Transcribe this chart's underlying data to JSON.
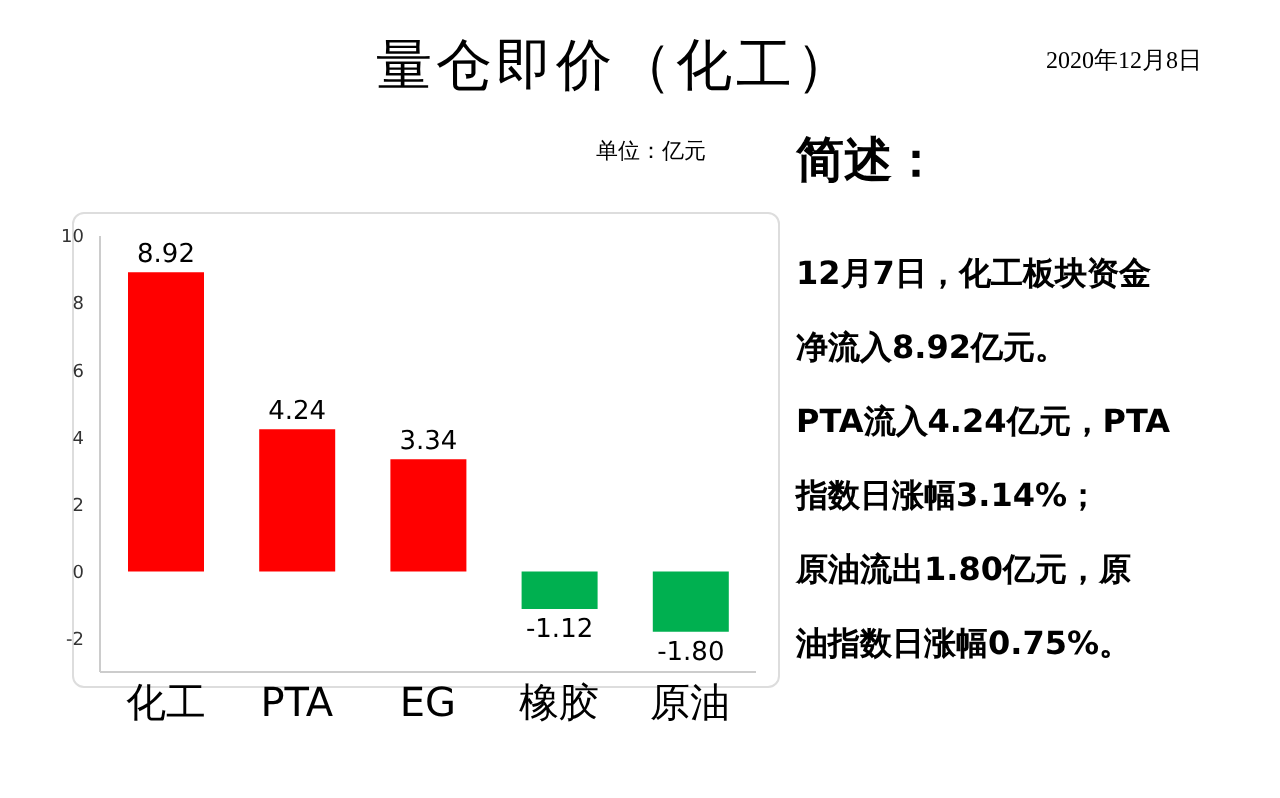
{
  "chart_data": {
    "type": "bar",
    "title": "量仓即价（化工）",
    "subtitle": "单位：亿元",
    "categories": [
      "化工",
      "PTA",
      "EG",
      "橡胶",
      "原油"
    ],
    "values": [
      8.92,
      4.24,
      3.34,
      -1.12,
      -1.8
    ],
    "value_labels": [
      "8.92",
      "4.24",
      "3.34",
      "-1.12",
      "-1.80"
    ],
    "colors": [
      "#ff0000",
      "#ff0000",
      "#ff0000",
      "#00b050",
      "#00b050"
    ],
    "ylim": [
      -3,
      10
    ],
    "yticks": [
      -2,
      0,
      2,
      4,
      6,
      8,
      10
    ],
    "grid": false,
    "legend": false,
    "annotations": [
      "2020年12月8日",
      "简述：",
      "12月7日，化工板块资金",
      "净流入8.92亿元。",
      "PTA流入4.24亿元，PTA",
      "指数日涨幅3.14%；",
      "原油流出1.80亿元，原",
      "油指数日涨幅0.75%。"
    ]
  }
}
